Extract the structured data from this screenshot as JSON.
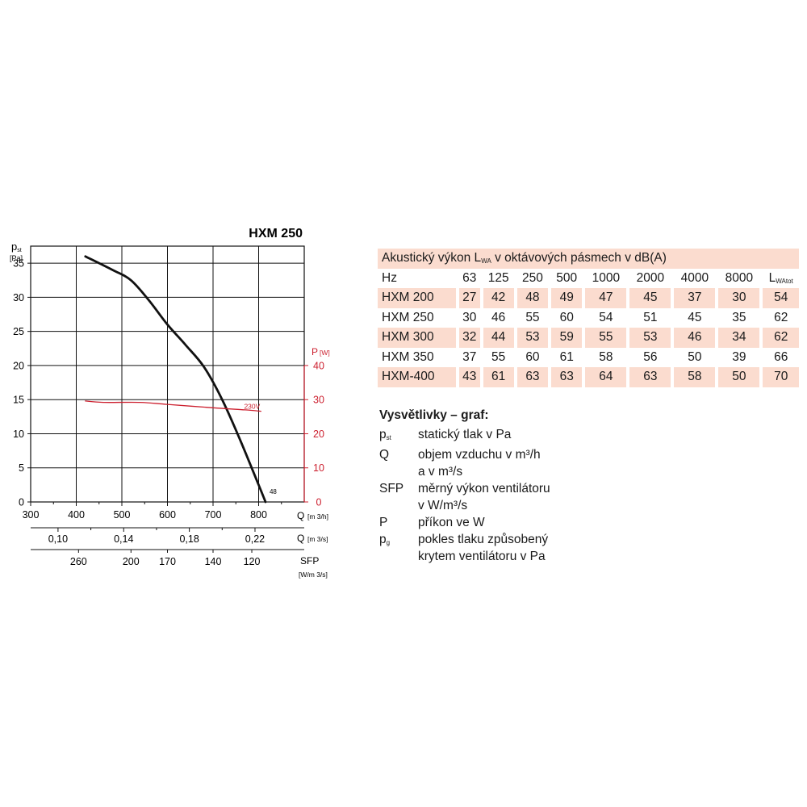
{
  "chart_data": {
    "type": "line",
    "title": "HXM 250",
    "y_axis": {
      "label_main": "p",
      "label_sub": "st",
      "unit": "[Pa]",
      "range": [
        0,
        37.5
      ],
      "ticks": [
        "0",
        "5",
        "10",
        "15",
        "20",
        "25",
        "30",
        "35"
      ]
    },
    "y2_axis": {
      "label": "P",
      "unit": "[W]",
      "range": [
        0,
        75
      ],
      "ticks": [
        "0",
        "10",
        "20",
        "30",
        "40"
      ],
      "color": "#cc1f2e"
    },
    "x_axis": {
      "label": "Q",
      "unit": "[m 3/h]",
      "range": [
        300,
        900
      ],
      "ticks": [
        "300",
        "400",
        "500",
        "600",
        "700",
        "800"
      ]
    },
    "x_axis_m3s": {
      "label": "Q",
      "unit": "[m 3/s]",
      "ticks": [
        {
          "value": 0.1,
          "text": "0,10"
        },
        {
          "value": 0.14,
          "text": "0,14"
        },
        {
          "value": 0.18,
          "text": "0,18"
        },
        {
          "value": 0.22,
          "text": "0,22"
        }
      ]
    },
    "x_axis_sfp": {
      "label": "SFP",
      "unit": "[W/m 3/s]",
      "ticks": [
        {
          "at_q": 405,
          "text": "260"
        },
        {
          "at_q": 520,
          "text": "200"
        },
        {
          "at_q": 600,
          "text": "170"
        },
        {
          "at_q": 700,
          "text": "140"
        },
        {
          "at_q": 785,
          "text": "120"
        }
      ]
    },
    "series": [
      {
        "axis": "left",
        "color": "#111111",
        "x": [
          420,
          480,
          520,
          560,
          600,
          640,
          680,
          720,
          760,
          800,
          815
        ],
        "y": [
          36,
          34,
          32.5,
          29.5,
          26,
          23,
          19.8,
          15,
          9,
          2.5,
          0
        ]
      },
      {
        "name": "230V",
        "axis": "right",
        "color": "#cc1f2e",
        "x": [
          420,
          460,
          540,
          600,
          700,
          770,
          805
        ],
        "y": [
          29.6,
          29.2,
          29.2,
          28.6,
          27.6,
          27.0,
          26.6
        ]
      }
    ],
    "annotations": [
      {
        "text": "48",
        "x": 815,
        "y": 0
      }
    ],
    "grid": true
  },
  "table": {
    "caption_pre": "Akustický výkon L",
    "caption_sub": "WA",
    "caption_post": " v oktávových pásmech v dB(A)",
    "header": {
      "label": "Hz",
      "bands": [
        "63",
        "125",
        "250",
        "500",
        "1000",
        "2000",
        "4000",
        "8000"
      ],
      "total_main": "L",
      "total_sub": "WAtot"
    },
    "rows": [
      {
        "label": "HXM 200",
        "values": [
          "27",
          "42",
          "48",
          "49",
          "47",
          "45",
          "37",
          "30"
        ],
        "total": "54",
        "shaded": true
      },
      {
        "label": "HXM 250",
        "values": [
          "30",
          "46",
          "55",
          "60",
          "54",
          "51",
          "45",
          "35"
        ],
        "total": "62",
        "shaded": false
      },
      {
        "label": "HXM 300",
        "values": [
          "32",
          "44",
          "53",
          "59",
          "55",
          "53",
          "46",
          "34"
        ],
        "total": "62",
        "shaded": true
      },
      {
        "label": "HXM 350",
        "values": [
          "37",
          "55",
          "60",
          "61",
          "58",
          "56",
          "50",
          "39"
        ],
        "total": "66",
        "shaded": false
      },
      {
        "label": "HXM-400",
        "values": [
          "43",
          "61",
          "63",
          "63",
          "64",
          "63",
          "58",
          "50"
        ],
        "total": "70",
        "shaded": true
      }
    ]
  },
  "legend": {
    "title": "Vysvětlivky – graf:",
    "items": [
      {
        "sym_main": "p",
        "sym_sub": "st",
        "lines": [
          "statický tlak v Pa"
        ]
      },
      {
        "sym_main": "Q",
        "sym_sub": "",
        "lines": [
          "objem vzduchu v m³/h",
          "a v m³/s"
        ]
      },
      {
        "sym_main": "SFP",
        "sym_sub": "",
        "lines": [
          "měrný výkon ventilátoru",
          "v W/m³/s"
        ]
      },
      {
        "sym_main": "P",
        "sym_sub": "",
        "lines": [
          "příkon ve W"
        ]
      },
      {
        "sym_main": "p",
        "sym_sub": "g",
        "lines": [
          "pokles tlaku způsobený",
          "krytem ventilátoru v Pa"
        ]
      }
    ]
  }
}
